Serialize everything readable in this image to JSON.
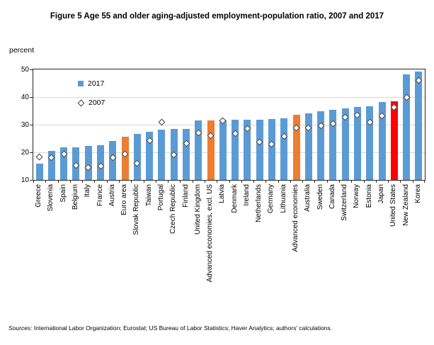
{
  "title": "Figure 5 Age 55 and older aging-adjusted employment-population ratio, 2007 and 2017",
  "y_axis_unit": "percent",
  "legend": {
    "items": [
      {
        "label": "2017",
        "marker": "square"
      },
      {
        "label": "2007",
        "marker": "diamond"
      }
    ]
  },
  "footer": {
    "sources_label": "Sources:",
    "sources_text": " International Labor Organization; Eurostat; US Bureau of Labor Statistics; Haver Analytics; authors' calculations."
  },
  "chart_data": {
    "type": "bar",
    "title": "Figure 5 Age 55 and older aging-adjusted employment-population ratio, 2007 and 2017",
    "ylabel": "percent",
    "ylim": [
      10,
      50
    ],
    "yticks": [
      10,
      20,
      30,
      40,
      50
    ],
    "grid": "horizontal",
    "legend_position": "inside-top-left",
    "categories": [
      "Greece",
      "Slovenia",
      "Spain",
      "Belgium",
      "Italy",
      "France",
      "Austria",
      "Euro area",
      "Slovak Republic",
      "Taiwan",
      "Portugal",
      "Czech Republic",
      "Finland",
      "United Kingdom",
      "Advanced economies, excl. US",
      "Latvia",
      "Denmark",
      "Ireland",
      "Netherlands",
      "Germany",
      "Lithuania",
      "Advanced economies",
      "Australia",
      "Sweden",
      "Canada",
      "Switzerland",
      "Norway",
      "Estonia",
      "Japan",
      "United States",
      "New Zealand",
      "Korea"
    ],
    "series": [
      {
        "name": "2017",
        "type": "bar",
        "values": [
          15.8,
          20.6,
          21.7,
          21.9,
          22.2,
          22.5,
          24.2,
          25.7,
          26.6,
          27.5,
          28.3,
          28.4,
          28.5,
          31.5,
          31.6,
          31.7,
          31.8,
          31.8,
          31.9,
          32.1,
          32.3,
          33.5,
          34.2,
          34.8,
          35.3,
          36.0,
          36.4,
          36.7,
          38.2,
          38.5,
          48.2,
          49.2
        ]
      },
      {
        "name": "2007",
        "type": "scatter-diamond",
        "values": [
          18.4,
          18.0,
          19.4,
          15.2,
          14.5,
          15.1,
          18.1,
          19.4,
          16.0,
          24.2,
          30.8,
          19.2,
          23.2,
          27.1,
          26.0,
          31.3,
          26.8,
          28.5,
          23.8,
          22.9,
          25.7,
          28.8,
          28.8,
          29.6,
          30.4,
          32.6,
          33.4,
          30.9,
          33.1,
          36.4,
          40.0,
          45.9
        ]
      }
    ],
    "highlight": {
      "orange_categories": [
        "Euro area",
        "Advanced economies, excl. US",
        "Advanced economies"
      ],
      "red_categories": [
        "United States"
      ]
    },
    "colors": {
      "bar_default": "#5B9BD5",
      "bar_aggregate": "#ED7D31",
      "bar_united_states": "#FF0000",
      "diamond_fill": "#FFFFFF",
      "diamond_border": "#404040",
      "gridline": "#D9D9D9",
      "axis": "#262626"
    }
  }
}
